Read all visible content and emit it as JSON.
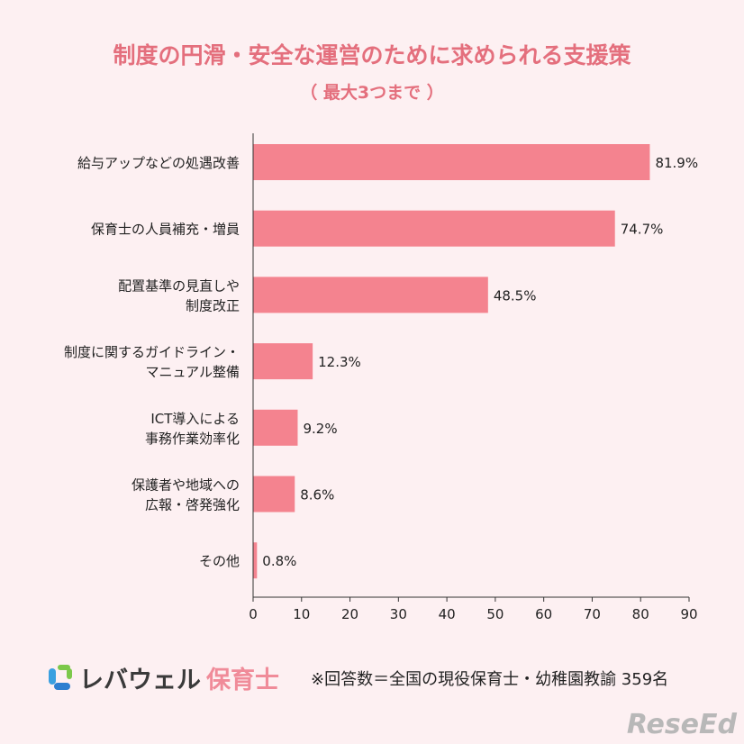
{
  "chart_data": {
    "type": "bar",
    "orientation": "horizontal",
    "title": "制度の円滑・安全な運営のために求められる支援策",
    "subtitle": "（ 最大3つまで ）",
    "categories": [
      [
        "給与アップなどの処遇改善"
      ],
      [
        "保育士の人員補充・増員"
      ],
      [
        "配置基準の見直しや",
        "制度改正"
      ],
      [
        "制度に関するガイドライン・",
        "マニュアル整備"
      ],
      [
        "ICT導入による",
        "事務作業効率化"
      ],
      [
        "保護者や地域への",
        "広報・啓発強化"
      ],
      [
        "その他"
      ]
    ],
    "values": [
      81.9,
      74.7,
      48.5,
      12.3,
      9.2,
      8.6,
      0.8
    ],
    "data_labels": [
      "81.9%",
      "74.7%",
      "48.5%",
      "12.3%",
      "9.2%",
      "8.6%",
      "0.8%"
    ],
    "xlim": [
      0,
      90
    ],
    "xticks": [
      "0",
      "10",
      "20",
      "30",
      "40",
      "50",
      "60",
      "70",
      "80",
      "90"
    ],
    "grid": false,
    "bar_color": "#f4838f",
    "title_color": "#e46f7d"
  },
  "footer": {
    "logo_main": "レバウェル",
    "logo_sub": "保育士",
    "note": "※回答数＝全国の現役保育士・幼稚園教諭 359名",
    "watermark": "ReseEd"
  }
}
